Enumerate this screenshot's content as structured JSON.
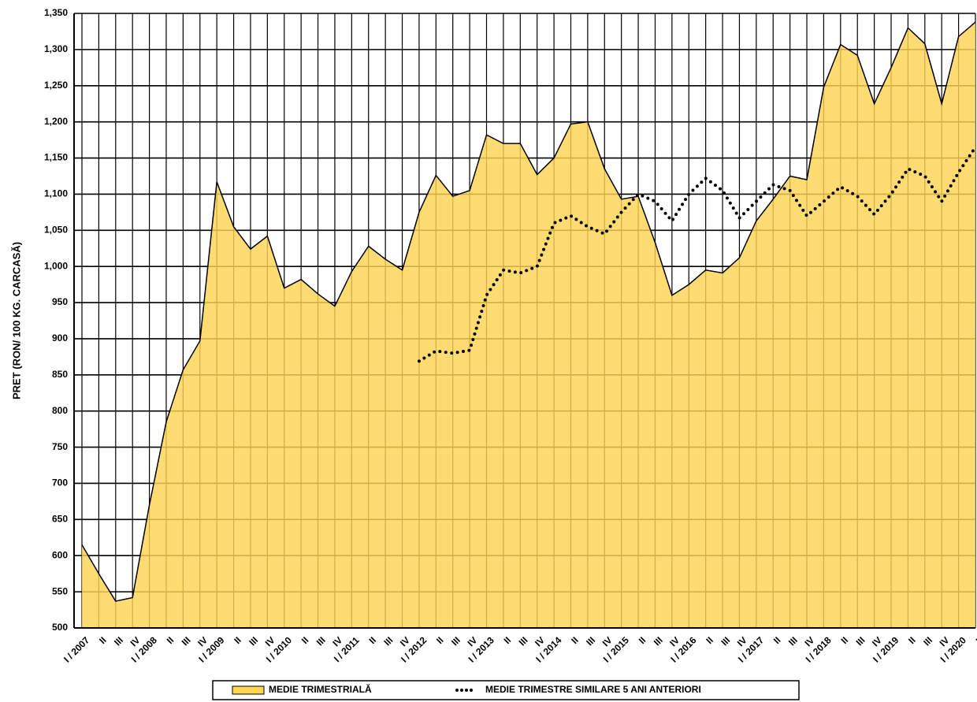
{
  "chart_data": {
    "type": "area",
    "y_label": "PRET (RON/ 100 KG. CARCASĂ)",
    "categories": [
      "I / 2007",
      "II",
      "III",
      "IV",
      "I / 2008",
      "II",
      "III",
      "IV",
      "I / 2009",
      "II",
      "III",
      "IV",
      "I / 2010",
      "II",
      "III",
      "IV",
      "I / 2011",
      "II",
      "III",
      "IV",
      "I / 2012",
      "II",
      "III",
      "IV",
      "I / 2013",
      "II",
      "III",
      "IV",
      "I / 2014",
      "II",
      "III",
      "IV",
      "I / 2015",
      "II",
      "III",
      "IV",
      "I / 2016",
      "II",
      "III",
      "IV",
      "I / 2017",
      "II",
      "III",
      "IV",
      "I / 2018",
      "II",
      "III",
      "IV",
      "I / 2019",
      "II",
      "III",
      "IV",
      "I / 2020",
      "II"
    ],
    "series": [
      {
        "name": "MEDIE TRIMESTRIALĂ",
        "color": "#ffd452",
        "style": "area",
        "values": [
          615,
          575,
          537,
          542,
          670,
          785,
          857,
          897,
          1117,
          1055,
          1024,
          1042,
          970,
          982,
          962,
          945,
          993,
          1028,
          1010,
          995,
          1075,
          1126,
          1097,
          1105,
          1182,
          1170,
          1170,
          1127,
          1150,
          1197,
          1200,
          1135,
          1093,
          1097,
          1033,
          960,
          975,
          995,
          991,
          1012,
          1063,
          1093,
          1125,
          1120,
          1248,
          1307,
          1292,
          1225,
          1275,
          1330,
          1308,
          1225,
          1318,
          1338
        ]
      },
      {
        "name": "MEDIE TRIMESTRE SIMILARE 5 ANI ANTERIORI",
        "color": "#000000",
        "style": "dotted",
        "values": [
          null,
          null,
          null,
          null,
          null,
          null,
          null,
          null,
          null,
          null,
          null,
          null,
          null,
          null,
          null,
          null,
          null,
          null,
          null,
          null,
          869,
          883,
          880,
          884,
          960,
          995,
          991,
          1000,
          1060,
          1070,
          1055,
          1045,
          1075,
          1100,
          1090,
          1063,
          1100,
          1122,
          1105,
          1067,
          1090,
          1113,
          1105,
          1070,
          1090,
          1110,
          1097,
          1072,
          1100,
          1135,
          1125,
          1090,
          1130,
          1165
        ]
      }
    ],
    "ylim": [
      500,
      1350
    ],
    "yticks": [
      500,
      550,
      600,
      650,
      700,
      750,
      800,
      850,
      900,
      950,
      {
        "value": 1000,
        "label": "1,000"
      },
      {
        "value": 1050,
        "label": "1,050"
      },
      {
        "value": 1100,
        "label": "1,100"
      },
      {
        "value": 1150,
        "label": "1,150"
      },
      {
        "value": 1200,
        "label": "1,200"
      },
      {
        "value": 1250,
        "label": "1,250"
      },
      {
        "value": 1300,
        "label": "1,300"
      },
      {
        "value": 1350,
        "label": "1,350"
      }
    ],
    "grid": true,
    "legend": "bottom"
  }
}
